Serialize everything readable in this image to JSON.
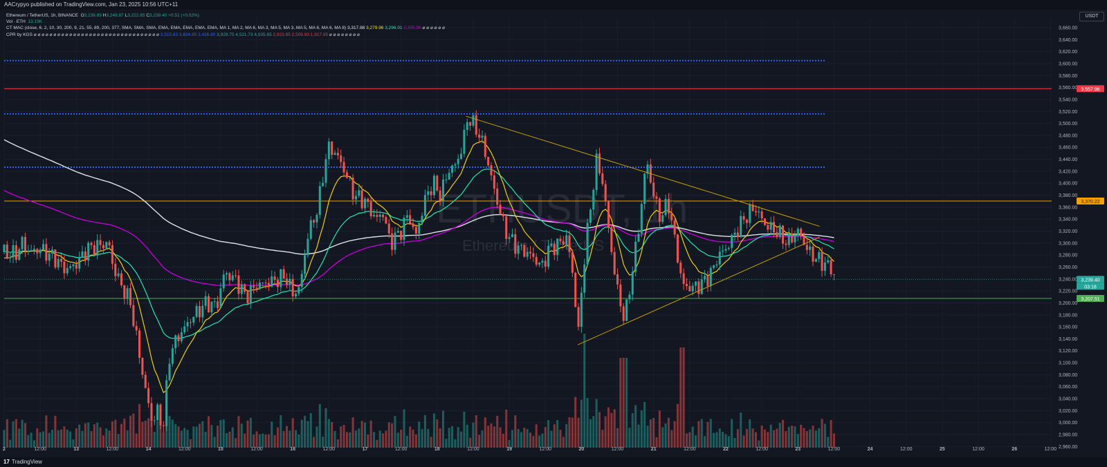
{
  "header": {
    "publish_text": "AACrypyo published on TradingView.com, Jan 23, 2025 10:56 UTC+11"
  },
  "legend": {
    "symbol_line": "Ethereum / TetherUS, 1h, BINANCE",
    "o_label": "O",
    "o_value": "3,238.89",
    "h_label": "H",
    "h_value": "3,248.87",
    "l_label": "L",
    "l_value": "3,222.85",
    "c_label": "C",
    "c_value": "3,239.40",
    "change": "+0.51 (+0.02%)",
    "vol_label": "Vol · ETH",
    "vol_value": "13.19K",
    "mac_label": "CT MAC (close, 6, 2, 10, 30, 200, 9, 21, 55, 89, 200, 377, SMA, SMA, SMA, EMA, EMA, EMA, EMA, EMA, MA 1, MA 2, MA 6, MA 3, MA 5, MA 3, MA 5, MA 6, MA 6, MA 8)",
    "mac_v1": "3,317.88",
    "mac_v2": "3,279.96",
    "mac_v3": "3,296.01",
    "mac_v4": "3,305.86",
    "mac_dots": "⌀ ⌀ ⌀ ⌀ ⌀ ⌀",
    "cpr_label": "CPR by KGS",
    "cpr_dots": "⌀ ⌀ ⌀ ⌀ ⌀ ⌀ ⌀ ⌀ ⌀ ⌀ ⌀ ⌀ ⌀ ⌀ ⌀ ⌀ ⌀ ⌀ ⌀ ⌀ ⌀ ⌀ ⌀ ⌀ ⌀ ⌀ ⌀ ⌀ ⌀ ⌀ ⌀ ⌀",
    "cpr_b1": "3,515.83",
    "cpr_b2": "3,604.85",
    "cpr_b3": "3,426.80",
    "cpr_g1": "3,929.75",
    "cpr_g2": "4,521.73",
    "cpr_g3": "4,935.65",
    "cpr_r1": "2,923.85",
    "cpr_r2": "2,509.93",
    "cpr_r3": "1,917.95",
    "cpr_dots_end": "⌀ ⌀ ⌀ ⌀ ⌀ ⌀ ⌀ ⌀"
  },
  "price_axis": {
    "currency": "USDT",
    "ticks": [
      "3,660.00",
      "3,640.00",
      "3,620.00",
      "3,600.00",
      "3,580.00",
      "3,560.00",
      "3,540.00",
      "3,520.00",
      "3,500.00",
      "3,480.00",
      "3,460.00",
      "3,440.00",
      "3,420.00",
      "3,400.00",
      "3,380.00",
      "3,360.00",
      "3,340.00",
      "3,320.00",
      "3,300.00",
      "3,280.00",
      "3,260.00",
      "3,240.00",
      "3,220.00",
      "3,200.00",
      "3,180.00",
      "3,160.00",
      "3,140.00",
      "3,120.00",
      "3,100.00",
      "3,080.00",
      "3,060.00",
      "3,040.00",
      "3,020.00",
      "3,000.00",
      "2,980.00",
      "2,960.00"
    ],
    "tags": {
      "red": "3,557.96",
      "yellow": "3,370.22",
      "current": "3,239.40",
      "countdown": "03:18",
      "green": "3,207.51"
    }
  },
  "time_axis": {
    "labels": [
      "2",
      "12:00",
      "13",
      "12:00",
      "14",
      "12:00",
      "15",
      "12:00",
      "16",
      "12:00",
      "17",
      "12:00",
      "18",
      "12:00",
      "19",
      "12:00",
      "20",
      "12:00",
      "21",
      "12:00",
      "22",
      "12:00",
      "23",
      "12:00",
      "24",
      "12:00",
      "25",
      "12:00",
      "26",
      "12:00"
    ]
  },
  "watermark": {
    "symbol": "ETHUSDT, 1h",
    "name": "Ethereum / TetherUS"
  },
  "footer": {
    "brand_mark": "17",
    "brand": "TradingView"
  },
  "colors": {
    "background": "#131722",
    "up": "#26a69a",
    "down": "#ef5350",
    "ma_white": "#e0e3eb",
    "ma_purple": "#c000d8",
    "ma_teal": "#1de9b6",
    "ma_yellow": "#f7d000",
    "level_red": "#f23645",
    "level_yellow": "#f5a200",
    "level_green": "#4caf50",
    "cpr_blue": "#2962ff"
  },
  "chart_data": {
    "type": "candlestick",
    "symbol": "Ethereum / TetherUS",
    "timeframe": "1h",
    "exchange": "BINANCE",
    "ylim": [
      2950,
      3675
    ],
    "horizontal_levels": [
      {
        "price": 3604.85,
        "style": "dotted",
        "color": "#2962ff"
      },
      {
        "price": 3557.96,
        "style": "solid",
        "color": "#f23645"
      },
      {
        "price": 3515.83,
        "style": "dotted",
        "color": "#2962ff"
      },
      {
        "price": 3426.8,
        "style": "dotted",
        "color": "#2962ff"
      },
      {
        "price": 3370.22,
        "style": "solid",
        "color": "#f5a200"
      },
      {
        "price": 3207.51,
        "style": "solid",
        "color": "#4caf50"
      }
    ],
    "trendlines": [
      {
        "from": [
          18.4,
          3512
        ],
        "to": [
          23.3,
          3328
        ]
      },
      {
        "from": [
          19.95,
          3130
        ],
        "to": [
          23.3,
          3310
        ]
      }
    ],
    "last_close": 3239.4
  }
}
